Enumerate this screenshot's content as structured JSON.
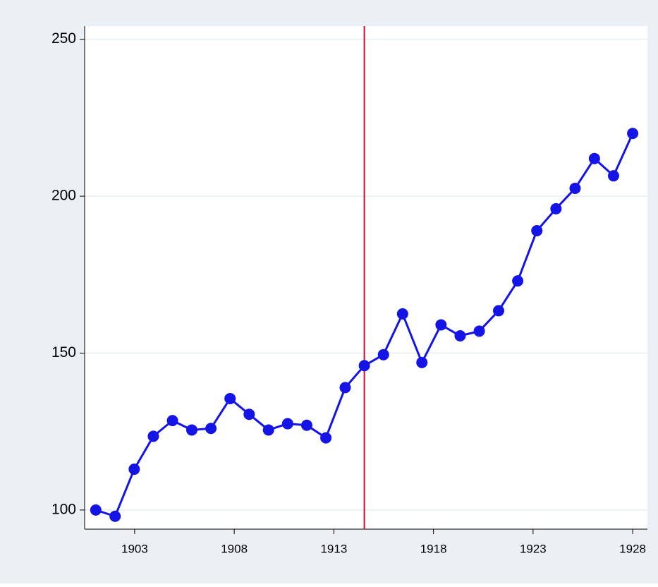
{
  "chart_data": {
    "type": "line",
    "x": [
      1901.05,
      1902.02,
      1902.98,
      1903.94,
      1904.9,
      1905.87,
      1906.83,
      1907.79,
      1908.75,
      1909.72,
      1910.68,
      1911.64,
      1912.6,
      1913.57,
      1914.53,
      1915.49,
      1916.45,
      1917.42,
      1918.38,
      1919.34,
      1920.3,
      1921.27,
      1922.23,
      1923.19,
      1924.15,
      1925.11,
      1926.08,
      1927.04,
      1928.0
    ],
    "series": [
      {
        "color": "#1414e6",
        "values": [
          100,
          98,
          113,
          123.5,
          128.5,
          125.5,
          126,
          135.5,
          130.5,
          125.5,
          127.5,
          127,
          123,
          139,
          146,
          149.5,
          162.5,
          147,
          159,
          155.5,
          157,
          163.5,
          173,
          189,
          196,
          202.5,
          212,
          206.5,
          220
        ]
      }
    ],
    "vline": {
      "value": 1914.53,
      "color": "#c8102e"
    },
    "xlim": [
      1900.49,
      1928.74
    ],
    "xticks": [
      1903,
      1908,
      1913,
      1918,
      1923,
      1928
    ],
    "ylim": [
      93.9,
      254.2
    ],
    "yticks": [
      100,
      150,
      200,
      250
    ],
    "grid": true
  }
}
